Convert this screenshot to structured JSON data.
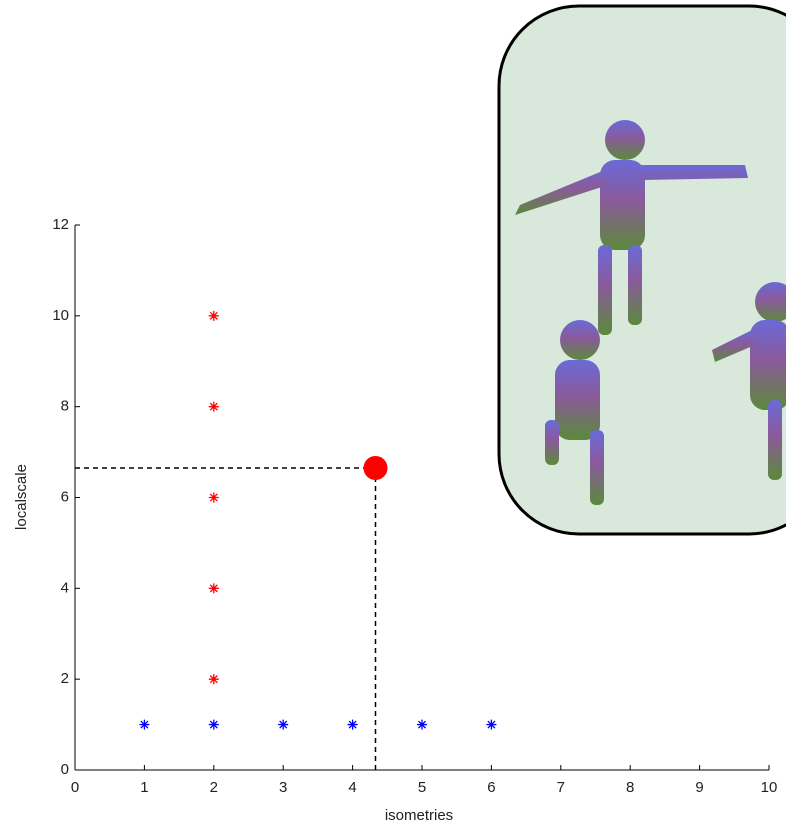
{
  "chart_data": {
    "type": "scatter",
    "xlabel": "isometries",
    "ylabel": "localscale",
    "xlim": [
      0,
      10
    ],
    "ylim": [
      0,
      12
    ],
    "xticks": [
      0,
      1,
      2,
      3,
      4,
      5,
      6,
      7,
      8,
      9,
      10
    ],
    "yticks": [
      0,
      2,
      4,
      6,
      8,
      10,
      12
    ],
    "series": [
      {
        "color": "#ff0000",
        "x": [
          2,
          2,
          2,
          2,
          2
        ],
        "values": [
          2,
          4,
          6,
          8,
          10
        ]
      },
      {
        "color": "#0000ff",
        "x": [
          1,
          2,
          3,
          4,
          5,
          6
        ],
        "values": [
          1,
          1,
          1,
          1,
          1,
          1
        ]
      }
    ],
    "highlight": {
      "x": 4.33,
      "y": 6.65,
      "color": "#ff0000"
    }
  }
}
